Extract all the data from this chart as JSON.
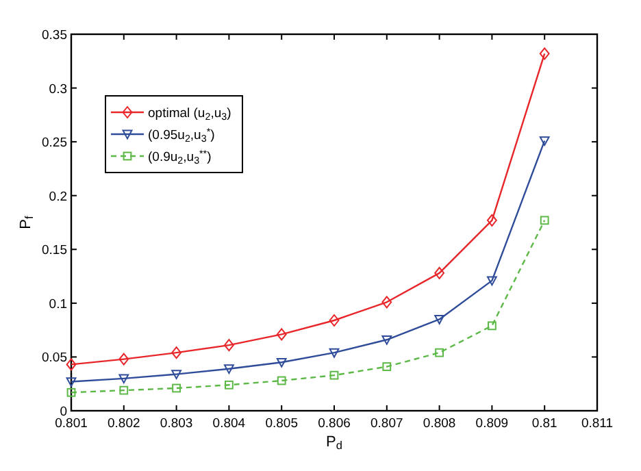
{
  "chart_data": {
    "type": "line",
    "xlabel": "P$_{d}$",
    "ylabel": "P$_{f}$",
    "x": [
      0.801,
      0.802,
      0.803,
      0.804,
      0.805,
      0.806,
      0.807,
      0.808,
      0.809,
      0.81
    ],
    "xlim": [
      0.801,
      0.811
    ],
    "xticks": [
      0.801,
      0.802,
      0.803,
      0.804,
      0.805,
      0.806,
      0.807,
      0.808,
      0.809,
      0.81,
      0.811
    ],
    "ylim": [
      0,
      0.35
    ],
    "yticks": [
      0,
      0.05,
      0.1,
      0.15,
      0.2,
      0.25,
      0.3,
      0.35
    ],
    "grid": false,
    "legend": "top left",
    "series": [
      {
        "name": "optimal (u$_{2}$,u$_{3}$)",
        "color": "#e8262a",
        "marker": "diamond",
        "line_style": "solid",
        "values": [
          0.043,
          0.048,
          0.054,
          0.061,
          0.071,
          0.084,
          0.101,
          0.128,
          0.177,
          0.332
        ]
      },
      {
        "name": "(0.95u$_{2}$,u$_{3}$$^{*}$)",
        "color": "#2e4c9a",
        "marker": "triangle",
        "line_style": "solid",
        "values": [
          0.027,
          0.03,
          0.034,
          0.039,
          0.045,
          0.054,
          0.066,
          0.085,
          0.121,
          0.251
        ]
      },
      {
        "name": "(0.9u$_{2}$,u$_{3}$$^{**}$)",
        "color": "#5cb947",
        "marker": "square",
        "line_style": "dashed",
        "values": [
          0.017,
          0.019,
          0.021,
          0.024,
          0.028,
          0.033,
          0.041,
          0.054,
          0.079,
          0.177
        ]
      }
    ]
  }
}
